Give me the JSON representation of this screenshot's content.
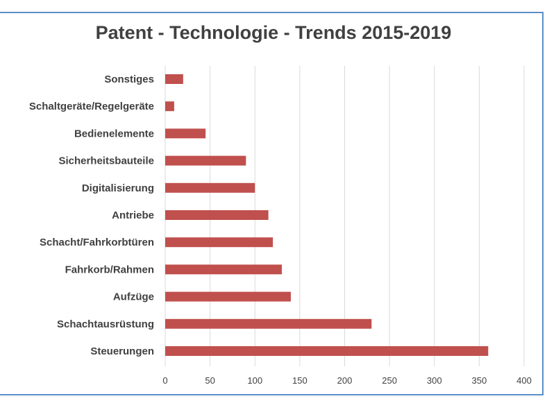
{
  "chart_data": {
    "type": "bar",
    "orientation": "horizontal",
    "title": "Patent - Technologie - Trends 2015-2019",
    "categories": [
      "Sonstiges",
      "Schaltgeräte/Regelgeräte",
      "Bedienelemente",
      "Sicherheitsbauteile",
      "Digitalisierung",
      "Antriebe",
      "Schacht/Fahrkorbtüren",
      "Fahrkorb/Rahmen",
      "Aufzüge",
      "Schachtausrüstung",
      "Steuerungen"
    ],
    "values": [
      20,
      10,
      45,
      90,
      100,
      115,
      120,
      130,
      140,
      230,
      360
    ],
    "xlim": [
      0,
      400
    ],
    "xticks": [
      0,
      50,
      100,
      150,
      200,
      250,
      300,
      350,
      400
    ],
    "xlabel": "",
    "ylabel": "",
    "grid": true,
    "bar_color": "#c0504d",
    "grid_color": "#d9d9d9"
  }
}
